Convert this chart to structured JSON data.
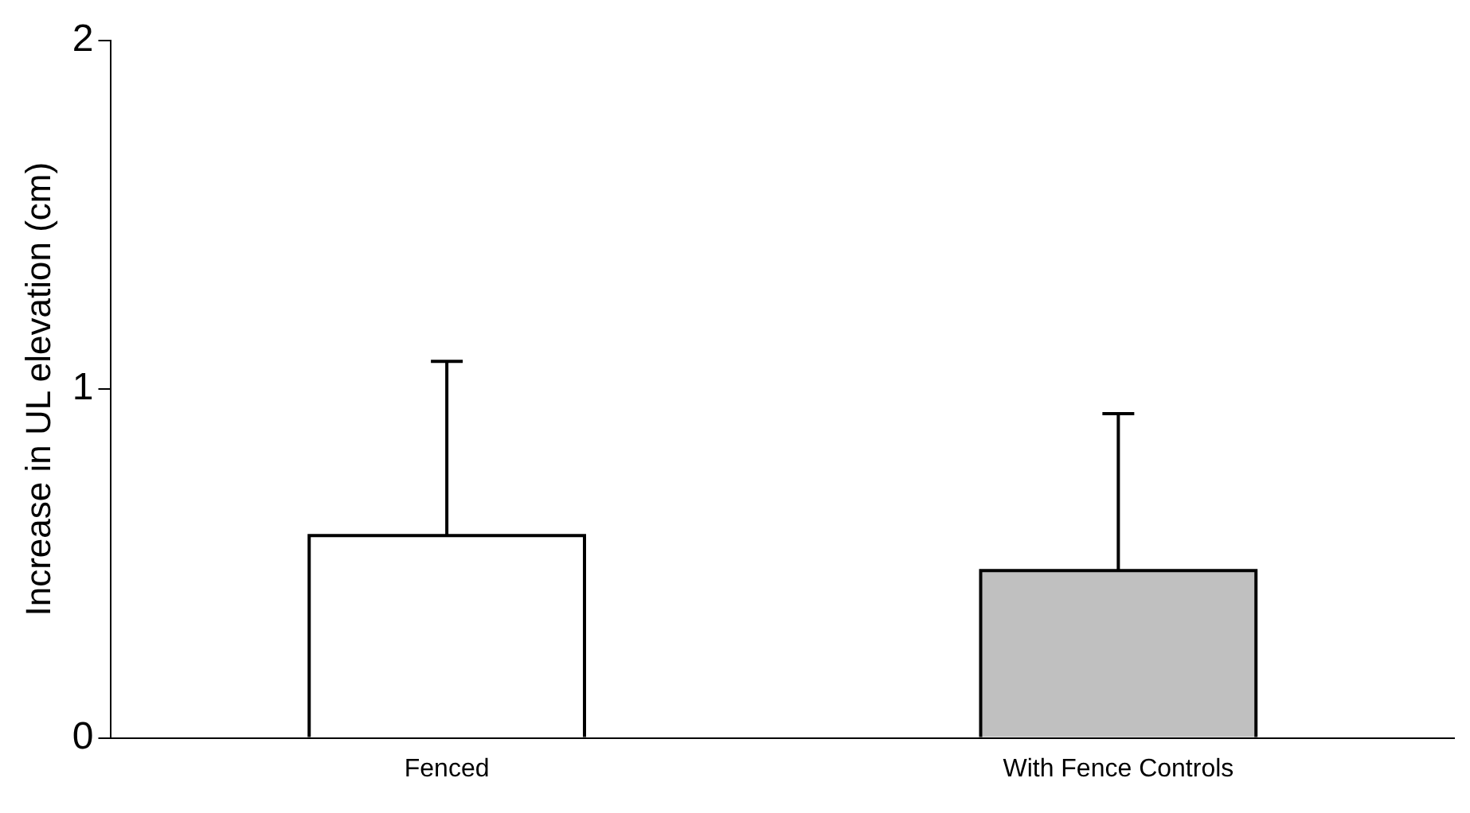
{
  "chart_data": {
    "type": "bar",
    "ylabel": "Increase in UL elevation (cm)",
    "categories": [
      "Fenced",
      "With Fence Controls"
    ],
    "values": [
      0.58,
      0.48
    ],
    "colors": [
      "#ffffff",
      "#c0c0c0"
    ],
    "errors": [
      [
        0.58,
        1.08
      ],
      [
        0.48,
        0.93
      ]
    ],
    "ylim": [
      0,
      2
    ],
    "yticks": [
      0,
      1,
      2
    ],
    "grid": false,
    "legend": false
  }
}
